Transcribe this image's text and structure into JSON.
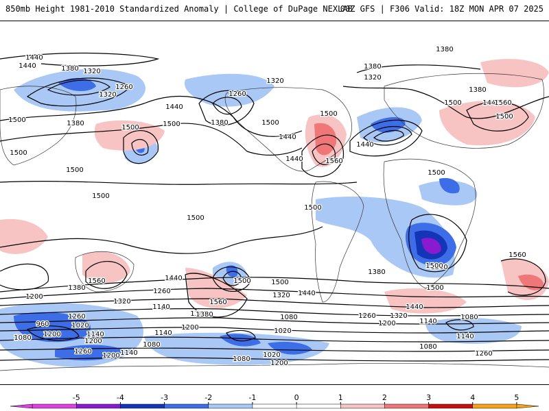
{
  "header": {
    "left": "850mb Height 1981-2010 Standardized Anomaly | College of DuPage NEXLAB",
    "right": "00Z GFS | F306 Valid: 18Z MON APR 07 2025"
  },
  "colorbar": {
    "ticks": [
      "-5",
      "-4",
      "-3",
      "-2",
      "-1",
      "0",
      "1",
      "2",
      "3",
      "4",
      "5"
    ],
    "colors": [
      "#e040e0",
      "#8a1ad0",
      "#1535b8",
      "#3d6ee8",
      "#a9c8f5",
      "#ffffff",
      "#ffffff",
      "#f7c3c3",
      "#ef7777",
      "#c80f0f",
      "#f7a21a"
    ]
  },
  "contour_labels": [
    {
      "id": "l1",
      "text": "1440"
    },
    {
      "id": "l2",
      "text": "1380"
    },
    {
      "id": "l3",
      "text": "1320"
    },
    {
      "id": "l4",
      "text": "1260"
    },
    {
      "id": "l5",
      "text": "1320"
    },
    {
      "id": "l6",
      "text": "1380"
    },
    {
      "id": "l7",
      "text": "1440"
    },
    {
      "id": "l8",
      "text": "1500"
    },
    {
      "id": "l9",
      "text": "1500"
    },
    {
      "id": "l10",
      "text": "1440"
    },
    {
      "id": "l11",
      "text": "1260"
    },
    {
      "id": "l12",
      "text": "1380"
    },
    {
      "id": "l13",
      "text": "1320"
    },
    {
      "id": "l14",
      "text": "1500"
    },
    {
      "id": "l15",
      "text": "1440"
    },
    {
      "id": "l16",
      "text": "1560"
    },
    {
      "id": "l17",
      "text": "1380"
    },
    {
      "id": "l18",
      "text": "1380"
    },
    {
      "id": "l19",
      "text": "1320"
    },
    {
      "id": "l20",
      "text": "1440"
    },
    {
      "id": "l21",
      "text": "1380"
    },
    {
      "id": "l22",
      "text": "1500"
    },
    {
      "id": "l23",
      "text": "1440"
    },
    {
      "id": "l24",
      "text": "1500"
    },
    {
      "id": "l25",
      "text": "1500"
    },
    {
      "id": "l26",
      "text": "1440"
    },
    {
      "id": "l27",
      "text": "1500"
    },
    {
      "id": "l28",
      "text": "1500"
    },
    {
      "id": "l29",
      "text": "1500"
    },
    {
      "id": "l30",
      "text": "1500"
    },
    {
      "id": "l31",
      "text": "1500"
    },
    {
      "id": "l32",
      "text": "1500"
    },
    {
      "id": "l33",
      "text": "1500"
    },
    {
      "id": "l34",
      "text": "1560"
    },
    {
      "id": "l35",
      "text": "1500"
    },
    {
      "id": "l36",
      "text": "1500"
    },
    {
      "id": "l37",
      "text": "1380"
    },
    {
      "id": "l38",
      "text": "1500"
    },
    {
      "id": "l39",
      "text": "1560"
    },
    {
      "id": "l40",
      "text": "1440"
    },
    {
      "id": "l41",
      "text": "1380"
    },
    {
      "id": "l42",
      "text": "1320"
    },
    {
      "id": "l43",
      "text": "1200"
    },
    {
      "id": "l44",
      "text": "1260"
    },
    {
      "id": "l45",
      "text": "1140"
    },
    {
      "id": "l46",
      "text": "1560"
    },
    {
      "id": "l47",
      "text": "1380"
    },
    {
      "id": "l48",
      "text": "1200"
    },
    {
      "id": "l49",
      "text": "1140"
    },
    {
      "id": "l50",
      "text": "1500"
    },
    {
      "id": "l51",
      "text": "1440"
    },
    {
      "id": "l52",
      "text": "1320"
    },
    {
      "id": "l53",
      "text": "1080"
    },
    {
      "id": "l54",
      "text": "1380"
    },
    {
      "id": "l55",
      "text": "1440"
    },
    {
      "id": "l56",
      "text": "1500"
    },
    {
      "id": "l57",
      "text": "1320"
    },
    {
      "id": "l58",
      "text": "1260"
    },
    {
      "id": "l59",
      "text": "1200"
    },
    {
      "id": "l60",
      "text": "1140"
    },
    {
      "id": "l61",
      "text": "1080"
    },
    {
      "id": "l62",
      "text": "1140"
    },
    {
      "id": "l63",
      "text": "1260"
    },
    {
      "id": "l64",
      "text": "960"
    },
    {
      "id": "l65",
      "text": "1020"
    },
    {
      "id": "l66",
      "text": "1200"
    },
    {
      "id": "l67",
      "text": "1140"
    },
    {
      "id": "l68",
      "text": "1080"
    },
    {
      "id": "l69",
      "text": "1200"
    },
    {
      "id": "l70",
      "text": "1260"
    },
    {
      "id": "l71",
      "text": "1200"
    },
    {
      "id": "l72",
      "text": "1140"
    },
    {
      "id": "l73",
      "text": "1080"
    },
    {
      "id": "l74",
      "text": "1020"
    },
    {
      "id": "l75",
      "text": "1080"
    },
    {
      "id": "l76",
      "text": "1020"
    },
    {
      "id": "l77",
      "text": "1200"
    },
    {
      "id": "l78",
      "text": "1080"
    },
    {
      "id": "l79",
      "text": "1080"
    },
    {
      "id": "l80",
      "text": "1260"
    },
    {
      "id": "l81",
      "text": "1560"
    }
  ]
}
